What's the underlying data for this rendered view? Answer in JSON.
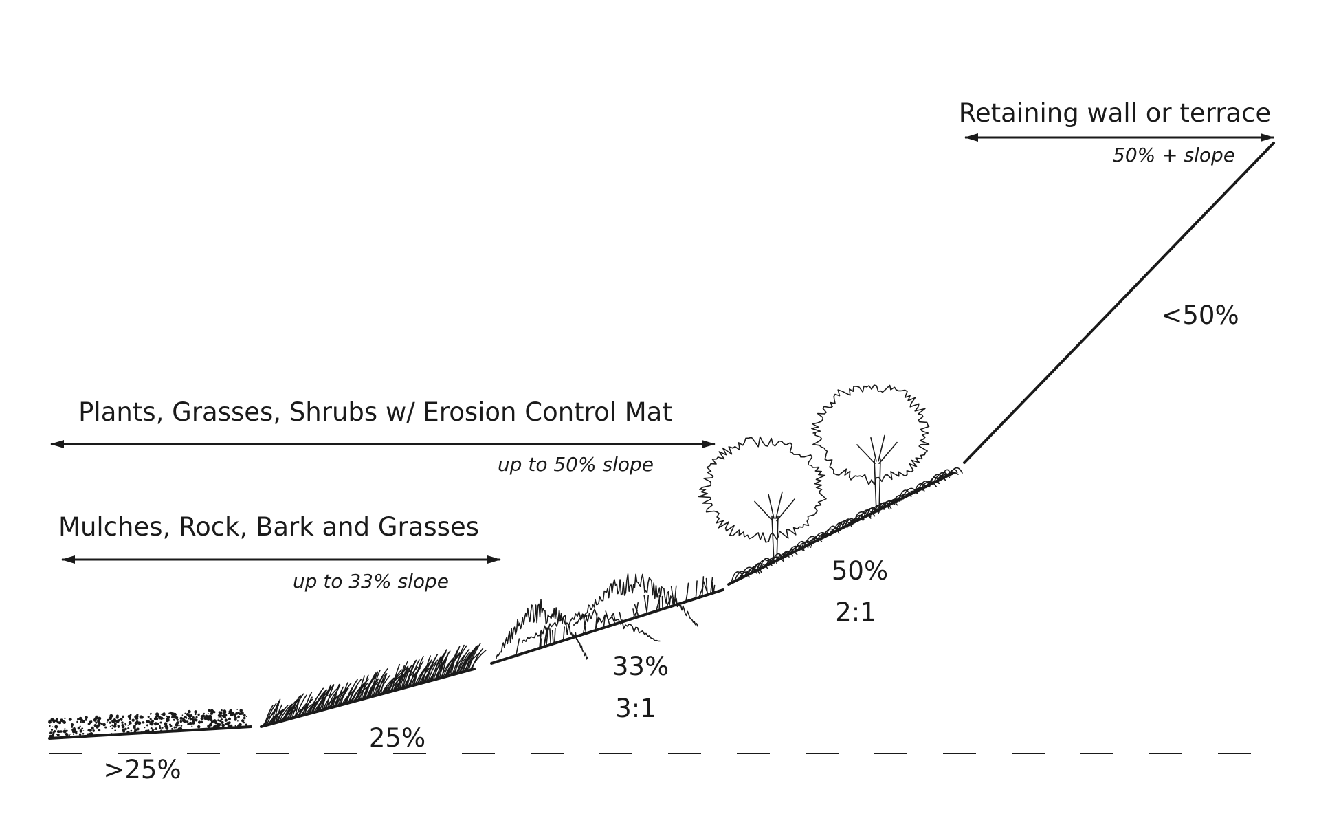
{
  "zones": {
    "retaining": {
      "title": "Retaining wall or terrace",
      "note": "50% + slope"
    },
    "plants": {
      "title": "Plants, Grasses, Shrubs w/ Erosion Control Mat",
      "note": "up to 50% slope"
    },
    "mulches": {
      "title": "Mulches, Rock, Bark and Grasses",
      "note": "up to 33% slope"
    }
  },
  "grades": {
    "g0": {
      "percent": ">25%"
    },
    "g1": {
      "percent": "25%"
    },
    "g2": {
      "percent": "33%",
      "ratio": "3:1"
    },
    "g3": {
      "percent": "50%",
      "ratio": "2:1"
    },
    "g4": {
      "percent": "<50%"
    }
  },
  "icons": {
    "mulch": "mulch-texture-icon",
    "grass": "grass-icon",
    "shrub": "shrub-icon",
    "tree": "tree-icon"
  }
}
